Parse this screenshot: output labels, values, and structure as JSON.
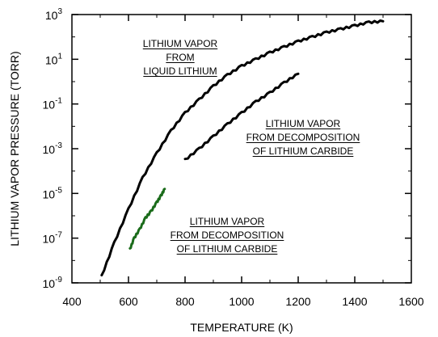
{
  "chart_data": {
    "type": "line",
    "xlabel": "TEMPERATURE (K)",
    "ylabel": "LITHIUM VAPOR PRESSURE (TORR)",
    "xlim": [
      400,
      1600
    ],
    "ylim_exponent": [
      -9,
      3
    ],
    "yscale": "log",
    "x_ticks": [
      "400",
      "600",
      "800",
      "1000",
      "1200",
      "1400",
      "1600"
    ],
    "y_ticks": [
      {
        "base": "10",
        "exp": "3"
      },
      {
        "base": "10",
        "exp": "1"
      },
      {
        "base": "10",
        "exp": "-1"
      },
      {
        "base": "10",
        "exp": "-3"
      },
      {
        "base": "10",
        "exp": "-5"
      },
      {
        "base": "10",
        "exp": "-7"
      },
      {
        "base": "10",
        "exp": "-9"
      }
    ],
    "grid": false,
    "colors": {
      "liquid": "#000000",
      "carbide_high": "#000000",
      "carbide_low": "#1a6b1a"
    },
    "series": [
      {
        "id": "liquid",
        "x": [
          505,
          550,
          600,
          650,
          700,
          750,
          800,
          850,
          900,
          950,
          1000,
          1050,
          1100,
          1150,
          1200,
          1250,
          1300,
          1350,
          1400,
          1450,
          1500
        ],
        "log10_torr": [
          -8.7,
          -7.2,
          -5.7,
          -4.3,
          -3.2,
          -2.2,
          -1.4,
          -0.8,
          -0.2,
          0.3,
          0.7,
          1.0,
          1.3,
          1.55,
          1.8,
          2.0,
          2.2,
          2.35,
          2.5,
          2.65,
          2.7
        ]
      },
      {
        "id": "carbide_high",
        "x": [
          800,
          850,
          900,
          950,
          1000,
          1050,
          1100,
          1150,
          1200
        ],
        "log10_torr": [
          -3.5,
          -3.0,
          -2.45,
          -1.9,
          -1.4,
          -0.9,
          -0.5,
          -0.05,
          0.35
        ]
      },
      {
        "id": "carbide_low",
        "x": [
          605,
          620,
          640,
          660,
          680,
          700,
          715,
          728
        ],
        "log10_torr": [
          -7.5,
          -7.0,
          -6.6,
          -6.1,
          -5.8,
          -5.4,
          -5.1,
          -4.8
        ]
      }
    ],
    "annotations": [
      {
        "lines": [
          "LITHIUM VAPOR",
          "FROM",
          "LIQUID LITHIUM"
        ]
      },
      {
        "lines": [
          "LITHIUM VAPOR",
          "FROM DECOMPOSITION",
          "OF LITHIUM CARBIDE"
        ]
      },
      {
        "lines": [
          "LITHIUM VAPOR",
          "FROM DECOMPOSITION",
          "OF LITHIUM CARBIDE"
        ]
      }
    ]
  }
}
